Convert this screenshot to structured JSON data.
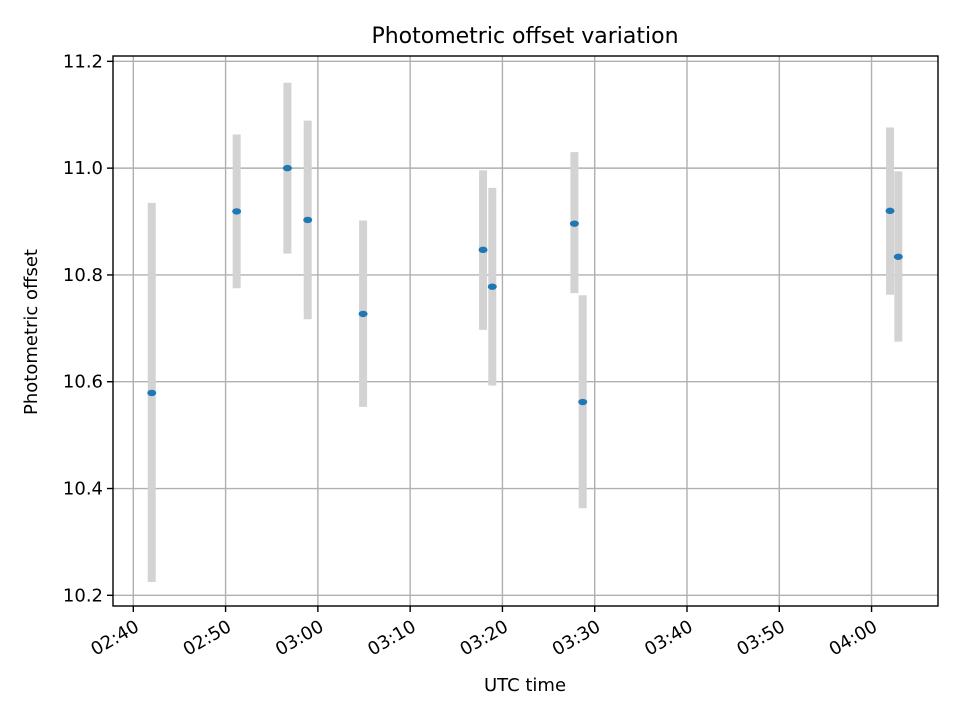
{
  "chart_data": {
    "type": "scatter",
    "title": "Photometric offset variation",
    "xlabel": "UTC time",
    "ylabel": "Photometric offset",
    "x_ticks": [
      "02:40",
      "02:50",
      "03:00",
      "03:10",
      "03:20",
      "03:30",
      "03:40",
      "03:50",
      "04:00"
    ],
    "y_ticks": [
      "10.2",
      "10.4",
      "10.6",
      "10.8",
      "11.0",
      "11.2"
    ],
    "xlim": [
      "02:37.8",
      "04:07.2"
    ],
    "ylim": [
      10.18,
      11.21
    ],
    "grid": true,
    "errorbar_color": "#d3d3d3",
    "marker_color": "#1f77b4",
    "points": [
      {
        "x": "02:42:00",
        "y": 10.579,
        "ylow": 10.225,
        "yhigh": 10.935
      },
      {
        "x": "02:51:12",
        "y": 10.919,
        "ylow": 10.775,
        "yhigh": 11.063
      },
      {
        "x": "02:56:42",
        "y": 11.0,
        "ylow": 10.84,
        "yhigh": 11.16
      },
      {
        "x": "02:58:54",
        "y": 10.903,
        "ylow": 10.717,
        "yhigh": 11.089
      },
      {
        "x": "03:04:54",
        "y": 10.727,
        "ylow": 10.553,
        "yhigh": 10.902
      },
      {
        "x": "03:17:54",
        "y": 10.847,
        "ylow": 10.697,
        "yhigh": 10.996
      },
      {
        "x": "03:18:54",
        "y": 10.778,
        "ylow": 10.593,
        "yhigh": 10.963
      },
      {
        "x": "03:27:48",
        "y": 10.896,
        "ylow": 10.766,
        "yhigh": 11.03
      },
      {
        "x": "03:28:42",
        "y": 10.562,
        "ylow": 10.363,
        "yhigh": 10.762
      },
      {
        "x": "04:02:00",
        "y": 10.92,
        "ylow": 10.763,
        "yhigh": 11.076
      },
      {
        "x": "04:02:54",
        "y": 10.834,
        "ylow": 10.675,
        "yhigh": 10.994
      }
    ]
  }
}
